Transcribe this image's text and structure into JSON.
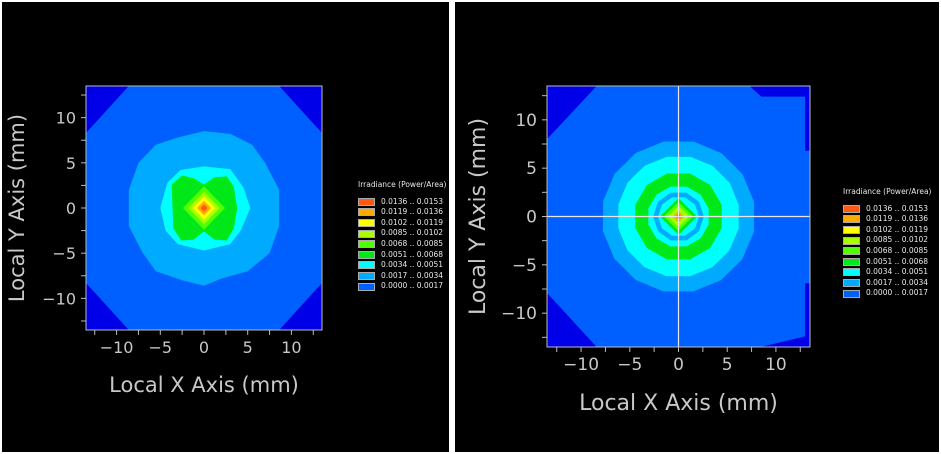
{
  "chart_data": [
    {
      "type": "heatmap",
      "subtype": "filled-contour",
      "xlabel": "Local X Axis (mm)",
      "ylabel": "Local Y Axis (mm)",
      "xlim": [
        -13.5,
        13.5
      ],
      "ylim": [
        -13.5,
        13.5
      ],
      "xticks": [
        -10,
        -5,
        0,
        5,
        10
      ],
      "yticks": [
        -10,
        -5,
        0,
        5,
        10
      ],
      "crosshair": false,
      "legend": {
        "title": "Irradiance (Power/Area)",
        "placement": "right"
      },
      "background_color": "#0000e8",
      "regions": [
        {
          "level": 0,
          "points": [
            [
              -8.6,
              13.5
            ],
            [
              8.6,
              13.5
            ],
            [
              13.5,
              8.3
            ],
            [
              13.5,
              -8.3
            ],
            [
              8.6,
              -13.5
            ],
            [
              -8.6,
              -13.5
            ],
            [
              -13.5,
              -8.3
            ],
            [
              -13.5,
              8.3
            ]
          ]
        },
        {
          "level": 1,
          "points": [
            [
              0,
              8.5
            ],
            [
              3,
              8.2
            ],
            [
              5.5,
              7
            ],
            [
              7,
              5
            ],
            [
              8.6,
              2
            ],
            [
              8.6,
              -2
            ],
            [
              7.5,
              -5
            ],
            [
              5,
              -7
            ],
            [
              2,
              -7.8
            ],
            [
              0,
              -8.6
            ],
            [
              -2.5,
              -8
            ],
            [
              -5.5,
              -7
            ],
            [
              -7,
              -5
            ],
            [
              -8.6,
              -2
            ],
            [
              -8.6,
              2
            ],
            [
              -7.5,
              5
            ],
            [
              -5.5,
              7
            ],
            [
              -3,
              7.8
            ]
          ]
        },
        {
          "level": 2,
          "points": [
            [
              0,
              4.6
            ],
            [
              3,
              4.3
            ],
            [
              4.5,
              2.3
            ],
            [
              5.3,
              0
            ],
            [
              4.2,
              -2.5
            ],
            [
              3,
              -4
            ],
            [
              0,
              -4.7
            ],
            [
              -3,
              -4
            ],
            [
              -4.4,
              -2.5
            ],
            [
              -5,
              0
            ],
            [
              -4.2,
              2.8
            ],
            [
              -2.7,
              4.2
            ]
          ]
        },
        {
          "level": 3,
          "points": [
            [
              -3.7,
              2.6
            ],
            [
              -2.5,
              3.6
            ],
            [
              -1.2,
              3.3
            ],
            [
              0,
              2.6
            ],
            [
              1.2,
              3.4
            ],
            [
              2.6,
              3.5
            ],
            [
              3.4,
              2.4
            ],
            [
              3.8,
              0
            ],
            [
              3.4,
              -2.3
            ],
            [
              2.6,
              -3.6
            ],
            [
              1.2,
              -3.5
            ],
            [
              0,
              -2.6
            ],
            [
              -1.2,
              -3.5
            ],
            [
              -2.6,
              -3.6
            ],
            [
              -3.5,
              -2.3
            ],
            [
              -3.6,
              0
            ]
          ]
        },
        {
          "level": 4,
          "radius": 2.4,
          "sides": 4,
          "rotation": 0
        },
        {
          "level": 5,
          "radius": 1.8,
          "sides": 4,
          "rotation": 0
        },
        {
          "level": 6,
          "radius": 1.3,
          "sides": 4,
          "rotation": 0
        },
        {
          "level": 7,
          "radius": 0.8,
          "sides": 4,
          "rotation": 0
        },
        {
          "level": 8,
          "radius": 0.4,
          "sides": 4,
          "rotation": 0
        }
      ]
    },
    {
      "type": "heatmap",
      "subtype": "filled-contour",
      "xlabel": "Local X Axis (mm)",
      "ylabel": "Local Y Axis (mm)",
      "xlim": [
        -13.5,
        13.5
      ],
      "ylim": [
        -13.5,
        13.5
      ],
      "xticks": [
        -10,
        -5,
        0,
        5,
        10
      ],
      "yticks": [
        -10,
        -5,
        0,
        5,
        10
      ],
      "crosshair": true,
      "legend": {
        "title": "Irradiance (Power/Area)",
        "placement": "right"
      },
      "background_color": "#0000e8",
      "regions": [
        {
          "level": 0,
          "points": [
            [
              -8.4,
              13.5
            ],
            [
              7.3,
              13.5
            ],
            [
              8.5,
              12.4
            ],
            [
              13,
              12.4
            ],
            [
              13,
              6.8
            ],
            [
              13.5,
              6.8
            ],
            [
              13.5,
              -6.9
            ],
            [
              13,
              -6.9
            ],
            [
              13,
              -12.4
            ],
            [
              8.4,
              -13.5
            ],
            [
              -8.4,
              -13.5
            ],
            [
              -13.5,
              -7.9
            ],
            [
              -13.5,
              8
            ]
          ]
        },
        {
          "level": 1,
          "radius": 7.9,
          "sides": 16,
          "rotation": 11
        },
        {
          "level": 2,
          "radius": 6.3,
          "sides": 16,
          "rotation": 11
        },
        {
          "level": 3,
          "radius": 4.6,
          "sides": 12,
          "rotation": 15
        },
        {
          "level": 2,
          "radius": 3.2,
          "sides": 12,
          "rotation": 15
        },
        {
          "level": 1,
          "radius": 2.6,
          "sides": 10,
          "rotation": 18
        },
        {
          "level": 2,
          "radius": 2.1,
          "sides": 10,
          "rotation": 18
        },
        {
          "level": 3,
          "radius": 1.9,
          "sides": 4,
          "rotation": 0
        },
        {
          "level": 4,
          "radius": 1.5,
          "sides": 4,
          "rotation": 0
        },
        {
          "level": 5,
          "radius": 1.1,
          "sides": 4,
          "rotation": 0
        },
        {
          "level": 7,
          "radius": 0.6,
          "sides": 4,
          "rotation": 0
        },
        {
          "level": 8,
          "radius": 0.3,
          "sides": 4,
          "rotation": 0
        }
      ]
    }
  ],
  "legend_levels": [
    {
      "label": "0.0136 .. 0.0153",
      "color": "#ff5a14"
    },
    {
      "label": "0.0119 .. 0.0136",
      "color": "#ffaa00"
    },
    {
      "label": "0.0102 .. 0.0119",
      "color": "#ffff00"
    },
    {
      "label": "0.0085 .. 0.0102",
      "color": "#a8ff00"
    },
    {
      "label": "0.0068 .. 0.0085",
      "color": "#50ff00"
    },
    {
      "label": "0.0051 .. 0.0068",
      "color": "#00e818"
    },
    {
      "label": "0.0034 .. 0.0051",
      "color": "#00ffff"
    },
    {
      "label": "0.0017 .. 0.0034",
      "color": "#00aaff"
    },
    {
      "label": "0.0000 .. 0.0017",
      "color": "#0060ff"
    }
  ],
  "tick_labels": [
    "−10",
    "−5",
    "0",
    "5",
    "10"
  ]
}
